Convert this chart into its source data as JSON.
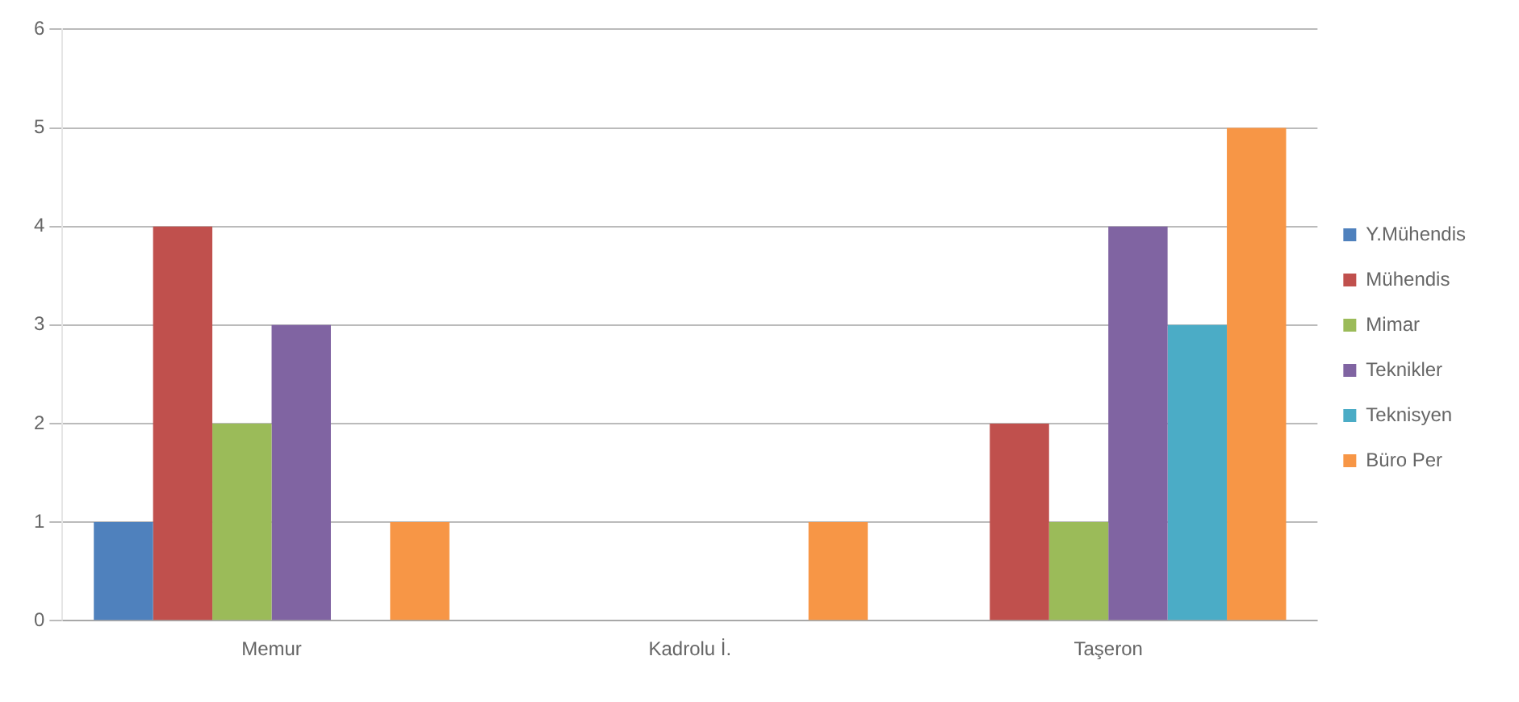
{
  "chart_data": {
    "type": "bar",
    "categories": [
      "Memur",
      "Kadrolu İ.",
      "Taşeron"
    ],
    "series": [
      {
        "name": "Y.Mühendis",
        "color": "#4f81bd",
        "values": [
          1,
          0,
          0
        ]
      },
      {
        "name": "Mühendis",
        "color": "#c0504d",
        "values": [
          4,
          0,
          2
        ]
      },
      {
        "name": "Mimar",
        "color": "#9bbb59",
        "values": [
          2,
          0,
          1
        ]
      },
      {
        "name": "Teknikler",
        "color": "#8064a2",
        "values": [
          3,
          0,
          4
        ]
      },
      {
        "name": "Teknisyen",
        "color": "#4bacc6",
        "values": [
          0,
          0,
          3
        ]
      },
      {
        "name": "Büro Per",
        "color": "#f79646",
        "values": [
          1,
          1,
          5
        ]
      }
    ],
    "ylim": [
      0,
      6
    ],
    "yticks": [
      0,
      1,
      2,
      3,
      4,
      5,
      6
    ],
    "grid": "y",
    "legend": "right"
  }
}
